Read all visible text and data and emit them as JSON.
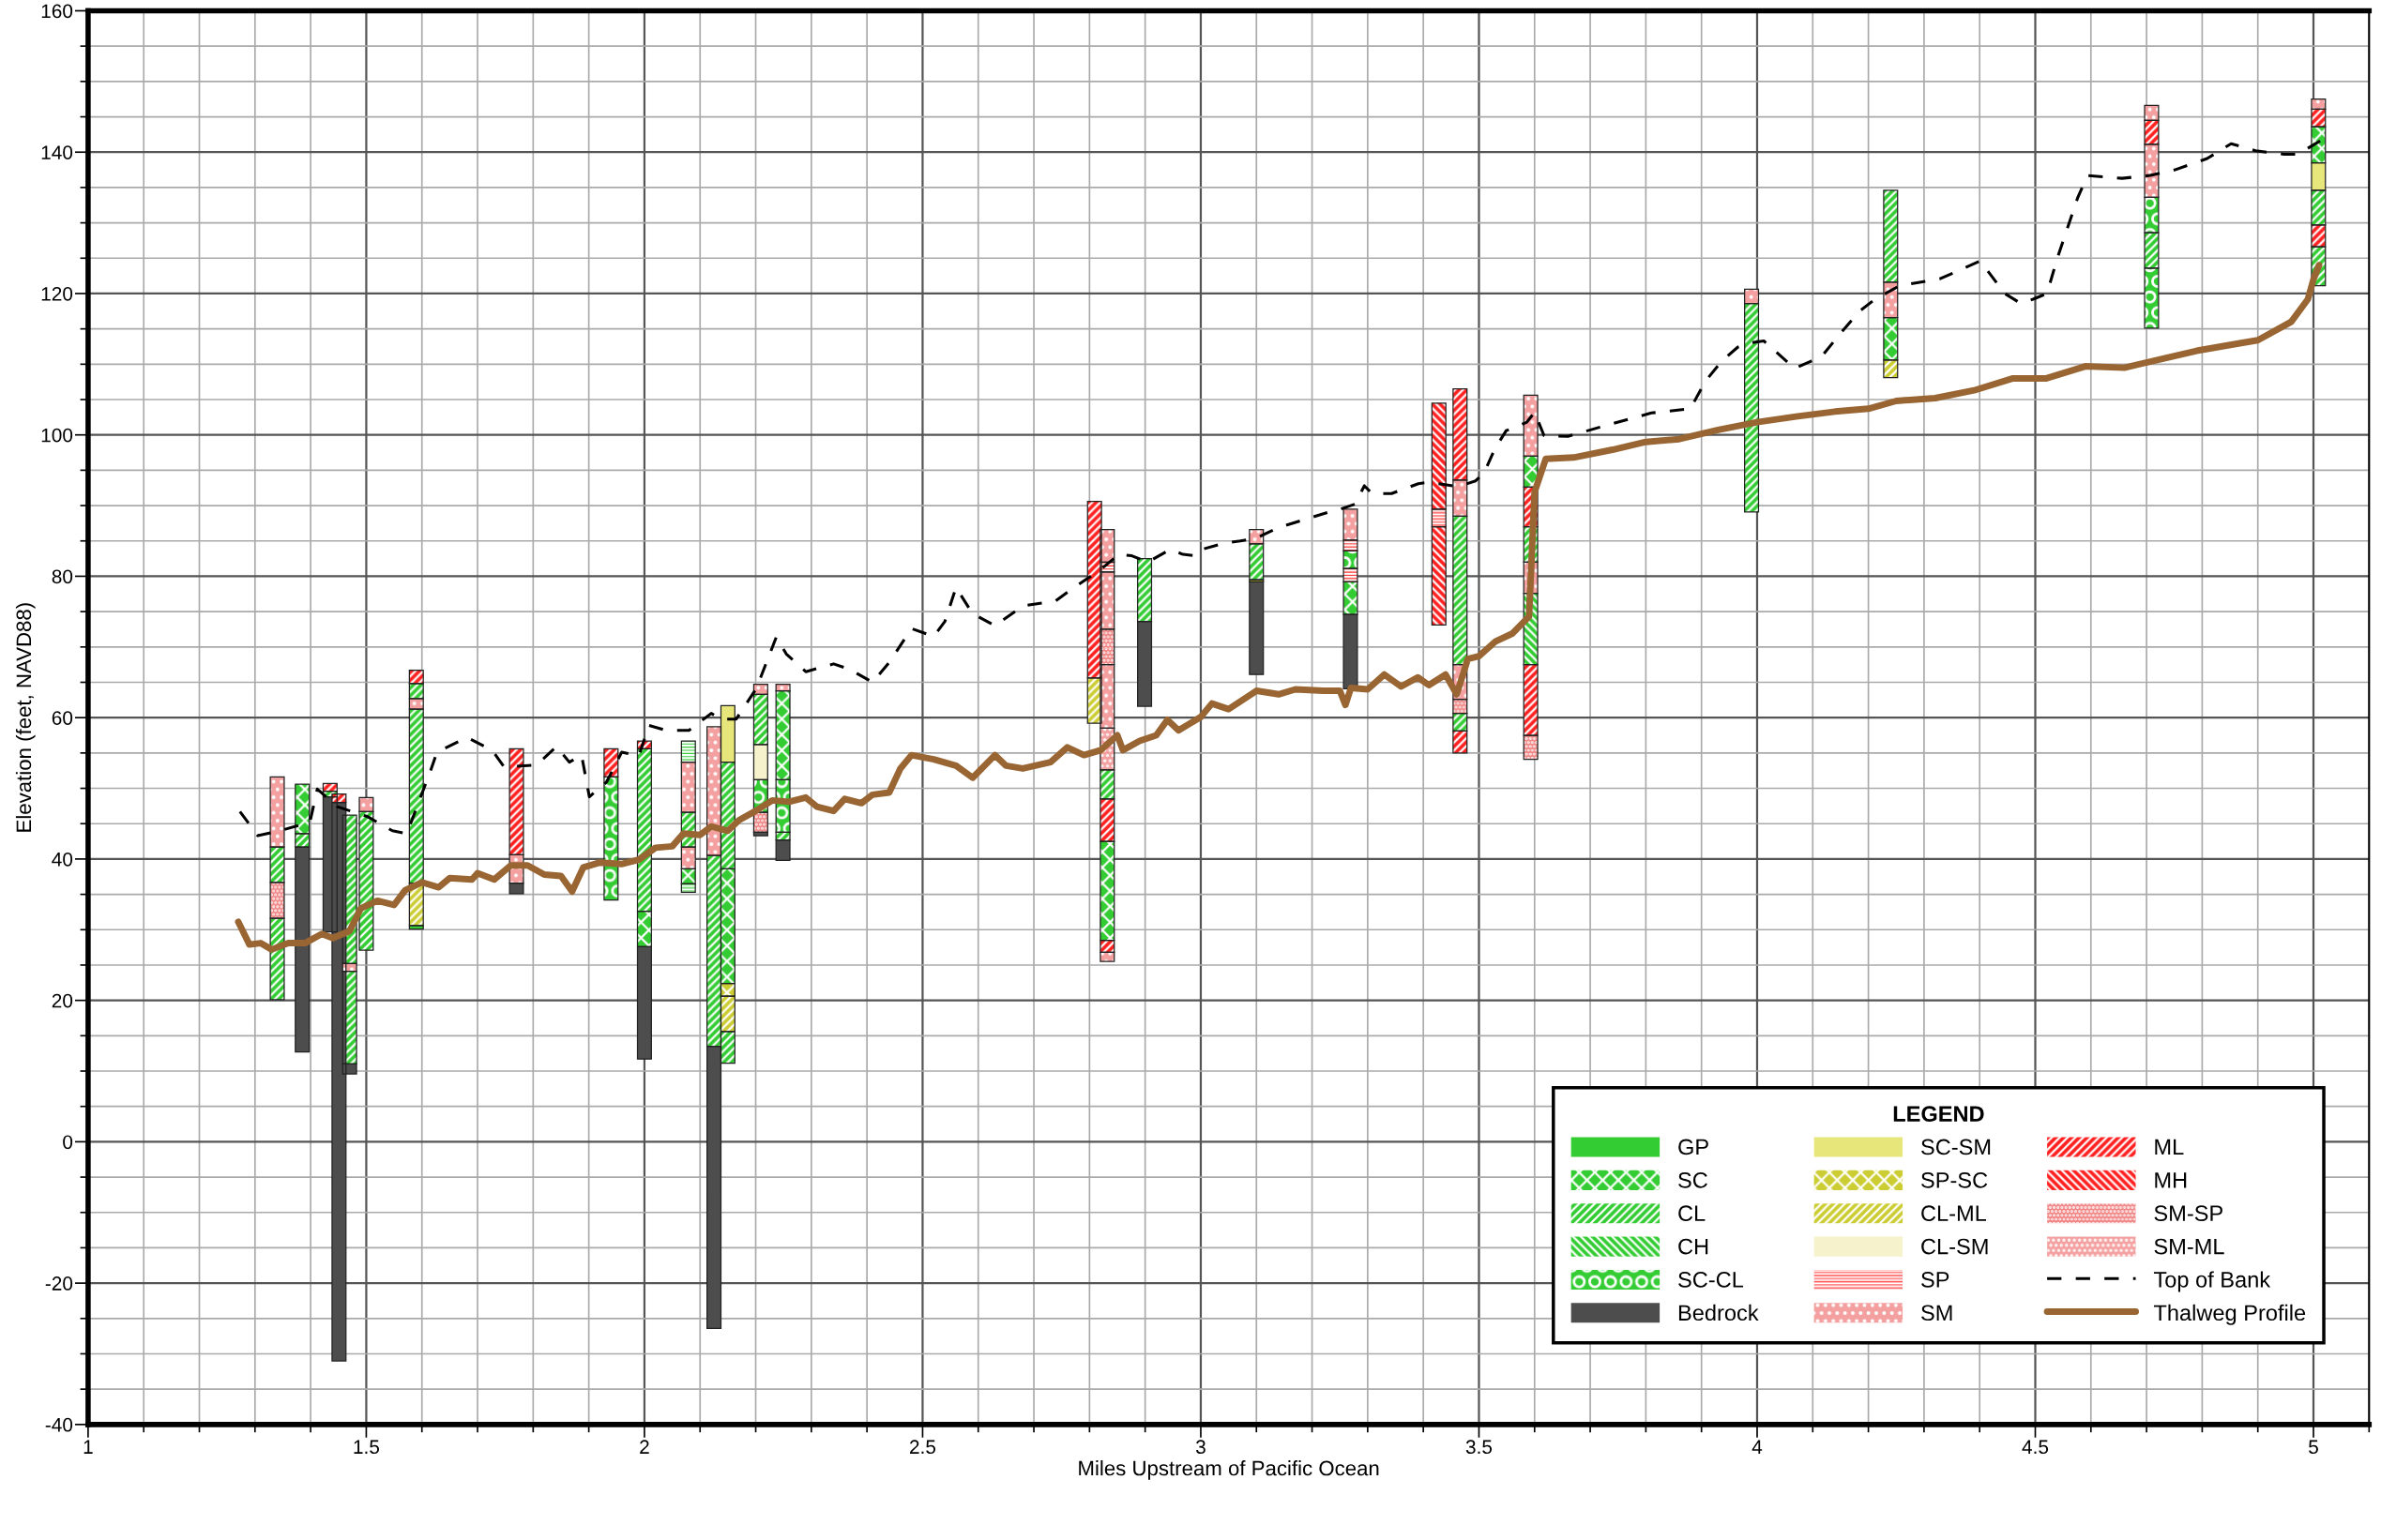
{
  "chart_data": {
    "type": "bar",
    "xlabel": "Miles Upstream of Pacific Ocean",
    "ylabel": "Elevation (feet, NAVD88)",
    "legend_title": "LEGEND",
    "legend": "bottom right",
    "grid": true,
    "xlim": [
      1,
      5.1
    ],
    "ylim": [
      -40,
      160
    ],
    "xticks": [
      1,
      {
        "value": 1.1,
        "label": null
      },
      {
        "value": 1.2,
        "label": null
      },
      {
        "value": 1.3,
        "label": null
      },
      {
        "value": 1.4,
        "label": null
      },
      1.5,
      {
        "value": 1.6,
        "label": null
      },
      {
        "value": 1.7,
        "label": null
      },
      {
        "value": 1.8,
        "label": null
      },
      {
        "value": 1.9,
        "label": null
      },
      2,
      {
        "value": 2.1,
        "label": null
      },
      {
        "value": 2.2,
        "label": null
      },
      {
        "value": 2.3,
        "label": null
      },
      {
        "value": 2.4,
        "label": null
      },
      2.5,
      {
        "value": 2.6,
        "label": null
      },
      {
        "value": 2.7,
        "label": null
      },
      {
        "value": 2.8,
        "label": null
      },
      {
        "value": 2.9,
        "label": null
      },
      3,
      {
        "value": 3.1,
        "label": null
      },
      {
        "value": 3.2,
        "label": null
      },
      {
        "value": 3.3,
        "label": null
      },
      {
        "value": 3.4,
        "label": null
      },
      3.5,
      {
        "value": 3.6,
        "label": null
      },
      {
        "value": 3.7,
        "label": null
      },
      {
        "value": 3.8,
        "label": null
      },
      {
        "value": 3.9,
        "label": null
      },
      4,
      {
        "value": 4.1,
        "label": null
      },
      {
        "value": 4.2,
        "label": null
      },
      {
        "value": 4.3,
        "label": null
      },
      {
        "value": 4.4,
        "label": null
      },
      4.5,
      {
        "value": 4.6,
        "label": null
      },
      {
        "value": 4.7,
        "label": null
      },
      {
        "value": 4.8,
        "label": null
      },
      {
        "value": 4.9,
        "label": null
      },
      5,
      {
        "value": 5.1,
        "label": null
      }
    ],
    "yticks": [
      -40,
      {
        "value": -35,
        "label": null
      },
      {
        "value": -30,
        "label": null
      },
      {
        "value": -25,
        "label": null
      },
      -20,
      {
        "value": -15,
        "label": null
      },
      {
        "value": -10,
        "label": null
      },
      {
        "value": -5,
        "label": null
      },
      0,
      {
        "value": 5,
        "label": null
      },
      {
        "value": 10,
        "label": null
      },
      {
        "value": 15,
        "label": null
      },
      20,
      {
        "value": 25,
        "label": null
      },
      {
        "value": 30,
        "label": null
      },
      {
        "value": 35,
        "label": null
      },
      40,
      {
        "value": 45,
        "label": null
      },
      {
        "value": 50,
        "label": null
      },
      {
        "value": 55,
        "label": null
      },
      60,
      {
        "value": 65,
        "label": null
      },
      {
        "value": 70,
        "label": null
      },
      {
        "value": 75,
        "label": null
      },
      80,
      {
        "value": 85,
        "label": null
      },
      {
        "value": 90,
        "label": null
      },
      {
        "value": 95,
        "label": null
      },
      100,
      {
        "value": 105,
        "label": null
      },
      {
        "value": 110,
        "label": null
      },
      {
        "value": 115,
        "label": null
      },
      120,
      {
        "value": 125,
        "label": null
      },
      {
        "value": 130,
        "label": null
      },
      {
        "value": 135,
        "label": null
      },
      140,
      {
        "value": 145,
        "label": null
      },
      {
        "value": 150,
        "label": null
      },
      {
        "value": 155,
        "label": null
      },
      160
    ],
    "series": [
      {
        "name": "GP",
        "color": "#33cc33",
        "x": [
          1.59,
          2.079
        ],
        "base": [
          30.1,
          53.7
        ],
        "values": [
          0.5,
          3.0
        ]
      },
      {
        "color": "#33cc33",
        "x": [
          2.079
        ],
        "base": [
          35.3
        ],
        "values": [
          1.2
        ]
      },
      {
        "name": "SC",
        "color": "#33cc33",
        "x": [
          1.385,
          2.0,
          2.079,
          2.15,
          2.249,
          2.832,
          3.269,
          3.593,
          4.24,
          5.009
        ],
        "base": [
          43.6,
          27.6,
          36.5,
          22.4,
          51.2,
          28.5,
          74.6,
          92.6,
          110.6,
          138.5
        ],
        "values": [
          7.0,
          5.0,
          2.1,
          16.2,
          12.6,
          14.0,
          4.6,
          4.4,
          6.0,
          5.1
        ]
      },
      {
        "name": "CL",
        "color": "#33cc33",
        "x": [
          1.34,
          1.385,
          1.435,
          1.47,
          1.5,
          1.59,
          2.0,
          2.079,
          2.125,
          2.15,
          2.209,
          2.249,
          2.832,
          2.899,
          3.1,
          3.466,
          3.593,
          3.99,
          4.24,
          4.709,
          5.009
        ],
        "base": [
          36.7,
          41.7,
          48.8,
          25.2,
          27.1,
          62.7,
          32.6,
          41.7,
          13.5,
          38.6,
          56.2,
          42.7,
          48.5,
          73.6,
          79.5,
          67.5,
          82.0,
          89.1,
          121.6,
          123.6,
          129.7
        ],
        "values": [
          5.0,
          1.9,
          0.8,
          21.0,
          19.6,
          2.1,
          23.0,
          4.9,
          27.0,
          15.1,
          7.1,
          1.1,
          4.1,
          8.9,
          5.1,
          21.0,
          5.0,
          29.5,
          13.0,
          5.0,
          4.9
        ]
      },
      {
        "color": "#33cc33",
        "x": [
          1.34,
          1.47,
          1.59,
          2.15,
          3.466,
          5.009
        ],
        "base": [
          20.1,
          11.0,
          36.6,
          11.1,
          58.1,
          121.1
        ],
        "values": [
          11.5,
          13.1,
          24.6,
          4.5,
          2.5,
          5.5
        ]
      },
      {
        "name": "CH",
        "color": "#33cc33",
        "x": [
          3.593
        ],
        "base": [
          67.5
        ],
        "values": [
          10.1
        ]
      },
      {
        "name": "SC-CL",
        "color": "#33cc33",
        "x": [
          1.94,
          2.209,
          2.249,
          3.269,
          4.709
        ],
        "base": [
          34.2,
          46.6,
          43.8,
          81.1,
          128.6
        ],
        "values": [
          17.4,
          4.6,
          7.4,
          2.5,
          5.0
        ]
      },
      {
        "color": "#33cc33",
        "x": [
          4.709
        ],
        "base": [
          115.1
        ],
        "values": [
          8.5
        ]
      },
      {
        "name": "Bedrock",
        "color": "#4d4d4d",
        "x": [
          1.385,
          1.435,
          1.451,
          1.47,
          1.77,
          2.0,
          2.125,
          2.209,
          2.249,
          2.899,
          3.1,
          3.269
        ],
        "base": [
          12.7,
          29.7,
          -31,
          9.6,
          35.1,
          11.7,
          -26.4,
          43.3,
          39.8,
          61.6,
          66.1,
          64.1
        ],
        "values": [
          29.0,
          19.1,
          79.0,
          1.4,
          1.5,
          15.9,
          39.9,
          0.5,
          2.9,
          12.0,
          13.1,
          10.5
        ]
      },
      {
        "name": "SC-SM",
        "color": "#e6e67a",
        "x": [
          2.15,
          5.009
        ],
        "base": [
          53.7,
          134.6
        ],
        "values": [
          8.0,
          3.9
        ]
      },
      {
        "name": "SP-SC",
        "color": "#cccc33",
        "x": [
          2.15
        ],
        "base": [
          20.6
        ],
        "values": [
          1.8
        ]
      },
      {
        "name": "CL-ML",
        "color": "#cccc33",
        "x": [
          1.59,
          2.15,
          2.809,
          3.1,
          4.24
        ],
        "base": [
          30.6,
          15.6,
          59.2,
          79.2,
          108.1
        ],
        "values": [
          6.0,
          5.0,
          6.4,
          0.3,
          2.5
        ]
      },
      {
        "name": "CL-SM",
        "color": "#f5f2cc",
        "x": [
          2.209
        ],
        "base": [
          51.2
        ],
        "values": [
          5.0
        ]
      },
      {
        "name": "SP",
        "color": "#ff2020",
        "x": [
          2.832,
          3.269,
          3.428
        ],
        "base": [
          80.6,
          83.6,
          87.0
        ],
        "values": [
          1.4,
          1.5,
          2.5
        ]
      },
      {
        "color": "#ff2020",
        "x": [
          3.269
        ],
        "base": [
          79.2
        ],
        "values": [
          1.9
        ]
      },
      {
        "name": "SM",
        "color": "#f4a0a0",
        "x": [
          1.34,
          1.47,
          1.5,
          1.59,
          1.77,
          2.079,
          2.125,
          2.209,
          2.249,
          2.832,
          3.1,
          3.269,
          3.466,
          3.593,
          3.99,
          4.24,
          4.709,
          5.009
        ],
        "base": [
          41.7,
          24.1,
          46.7,
          61.2,
          36.6,
          46.6,
          40.5,
          63.3,
          63.8,
          82.0,
          84.6,
          85.1,
          88.5,
          97.0,
          118.6,
          116.6,
          144.5,
          146.1
        ],
        "values": [
          9.9,
          1.1,
          2.0,
          1.5,
          4.0,
          7.1,
          18.2,
          1.4,
          0.9,
          4.6,
          2.0,
          4.4,
          5.1,
          8.6,
          2.0,
          5.0,
          2.1,
          1.4
        ]
      },
      {
        "color": "#f4a0a0",
        "x": [
          2.079,
          2.832,
          3.466,
          3.593,
          4.709
        ],
        "base": [
          38.6,
          72.5,
          62.6,
          77.6,
          133.6
        ],
        "values": [
          3.1,
          8.1,
          4.9,
          4.4,
          7.5
        ]
      },
      {
        "color": "#f4a0a0",
        "x": [
          2.832
        ],
        "base": [
          58.5
        ],
        "values": [
          9.0
        ]
      },
      {
        "color": "#f4a0a0",
        "x": [
          2.832
        ],
        "base": [
          25.5
        ],
        "values": [
          1.3
        ]
      },
      {
        "name": "ML",
        "color": "#ff2020",
        "x": [
          1.435,
          1.451,
          1.59,
          1.77,
          1.94,
          2.0,
          2.809,
          2.832,
          3.466,
          3.593,
          4.709,
          5.009
        ],
        "base": [
          49.6,
          48.0,
          64.8,
          40.6,
          51.6,
          55.6,
          65.6,
          42.5,
          93.6,
          87.0,
          141.1,
          143.6
        ],
        "values": [
          1.1,
          1.2,
          1.9,
          15.0,
          4.0,
          1.1,
          25.0,
          6.0,
          12.9,
          5.6,
          3.4,
          2.5
        ]
      },
      {
        "color": "#ff2020",
        "x": [
          2.832,
          3.466,
          3.593,
          5.009
        ],
        "base": [
          26.8,
          55.0,
          57.5,
          126.6
        ],
        "values": [
          1.7,
          3.1,
          10.0,
          3.1
        ]
      },
      {
        "name": "MH",
        "color": "#ff2020",
        "x": [
          3.428
        ],
        "base": [
          89.5
        ],
        "values": [
          15.0
        ]
      },
      {
        "color": "#ff2020",
        "x": [
          3.428
        ],
        "base": [
          73.1
        ],
        "values": [
          13.9
        ]
      },
      {
        "name": "SM-SP",
        "color": "#f08080",
        "x": [
          1.34,
          2.209,
          2.832,
          3.466,
          3.593
        ],
        "base": [
          31.6,
          43.8,
          67.5,
          60.6,
          54.1
        ],
        "values": [
          5.1,
          2.8,
          5.0,
          2.0,
          3.4
        ]
      },
      {
        "name": "SM-ML",
        "color": "#f4a0a0",
        "x": [
          2.832
        ],
        "base": [
          52.6
        ],
        "values": [
          5.9
        ]
      },
      {
        "name": "Top of Bank",
        "type": "line",
        "color": "#000000",
        "line_style": "dashed",
        "x": [
          1.273,
          1.305,
          1.345,
          1.376,
          1.399,
          1.412,
          1.448,
          1.502,
          1.547,
          1.573,
          1.616,
          1.627,
          1.681,
          1.726,
          1.748,
          1.806,
          1.842,
          1.865,
          1.887,
          1.901,
          1.932,
          1.959,
          1.99,
          2.008,
          2.039,
          2.08,
          2.12,
          2.138,
          2.165,
          2.201,
          2.237,
          2.255,
          2.29,
          2.34,
          2.37,
          2.41,
          2.44,
          2.48,
          2.52,
          2.54,
          2.56,
          2.59,
          2.63,
          2.68,
          2.739,
          2.768,
          2.819,
          2.853,
          2.876,
          2.905,
          2.945,
          2.968,
          2.991,
          3.002,
          3.042,
          3.071,
          3.1,
          3.14,
          3.185,
          3.231,
          3.251,
          3.277,
          3.294,
          3.308,
          3.343,
          3.391,
          3.408,
          3.463,
          3.494,
          3.509,
          3.529,
          3.549,
          3.569,
          3.586,
          3.6,
          3.617,
          3.66,
          3.74,
          3.81,
          3.88,
          3.907,
          3.936,
          3.965,
          3.987,
          4.012,
          4.067,
          4.096,
          4.118,
          4.147,
          4.184,
          4.212,
          4.256,
          4.329,
          4.358,
          4.401,
          4.445,
          4.474,
          4.496,
          4.521,
          4.54,
          4.576,
          4.594,
          4.656,
          4.707,
          4.751,
          4.809,
          4.852,
          4.896,
          4.947,
          4.972,
          5.012
        ],
        "values": [
          46.7,
          43.3,
          44.0,
          44.7,
          45.3,
          49.9,
          47.4,
          46.0,
          44.0,
          43.6,
          52.6,
          55.1,
          57.2,
          55.4,
          53.0,
          53.3,
          55.9,
          53.7,
          54.7,
          48.8,
          50.9,
          55.1,
          54.6,
          58.9,
          58.2,
          58.2,
          60.6,
          59.8,
          59.8,
          64.1,
          71.4,
          69.0,
          66.5,
          67.6,
          66.8,
          65.0,
          67.8,
          72.6,
          71.5,
          73.6,
          78.4,
          74.7,
          73.0,
          75.8,
          76.5,
          78.2,
          80.9,
          83.1,
          82.9,
          82.0,
          83.8,
          83.1,
          82.9,
          83.8,
          84.7,
          85.0,
          85.4,
          86.9,
          88.0,
          89.1,
          89.5,
          90.2,
          92.8,
          91.7,
          91.7,
          93.1,
          93.3,
          92.7,
          93.5,
          94.6,
          98.1,
          100.6,
          101.2,
          101.8,
          103.2,
          99.9,
          99.8,
          101.6,
          103.1,
          103.7,
          107.6,
          110.4,
          112.4,
          113.0,
          113.3,
          109.4,
          110.4,
          111.3,
          114.1,
          117.5,
          119.2,
          121.1,
          122.1,
          123.1,
          124.6,
          120.0,
          118.6,
          119.2,
          120.0,
          125.1,
          133.5,
          136.7,
          136.3,
          136.7,
          137.5,
          139.1,
          141.2,
          140.2,
          139.7,
          139.7,
          141.6
        ]
      },
      {
        "name": "Thalweg Profile",
        "type": "line",
        "color": "#996633",
        "line_style": "solid",
        "x": [
          1.27,
          1.29,
          1.31,
          1.33,
          1.36,
          1.39,
          1.42,
          1.44,
          1.47,
          1.49,
          1.52,
          1.55,
          1.57,
          1.6,
          1.63,
          1.65,
          1.69,
          1.7,
          1.73,
          1.76,
          1.79,
          1.82,
          1.85,
          1.87,
          1.89,
          1.92,
          1.96,
          1.99,
          2.02,
          2.05,
          2.07,
          2.1,
          2.12,
          2.15,
          2.17,
          2.2,
          2.23,
          2.26,
          2.29,
          2.31,
          2.34,
          2.36,
          2.39,
          2.41,
          2.44,
          2.46,
          2.48,
          2.52,
          2.56,
          2.59,
          2.63,
          2.65,
          2.68,
          2.73,
          2.76,
          2.79,
          2.82,
          2.85,
          2.86,
          2.89,
          2.92,
          2.94,
          2.96,
          3.0,
          3.02,
          3.05,
          3.1,
          3.14,
          3.17,
          3.22,
          3.25,
          3.26,
          3.27,
          3.3,
          3.33,
          3.36,
          3.39,
          3.41,
          3.44,
          3.46,
          3.48,
          3.5,
          3.53,
          3.56,
          3.59,
          3.6,
          3.62,
          3.67,
          3.74,
          3.8,
          3.86,
          3.93,
          4.0,
          4.07,
          4.14,
          4.2,
          4.25,
          4.32,
          4.39,
          4.46,
          4.52,
          4.59,
          4.66,
          4.73,
          4.79,
          4.87,
          4.9,
          4.96,
          4.99,
          5.0,
          5.01
        ],
        "values": [
          31.1,
          27.9,
          28.1,
          27.2,
          28.1,
          28.1,
          29.4,
          28.8,
          29.8,
          33.0,
          34.1,
          33.5,
          35.6,
          36.7,
          36.0,
          37.3,
          37.1,
          38.0,
          37.1,
          39.1,
          39.1,
          37.8,
          37.6,
          35.4,
          38.8,
          39.5,
          39.3,
          39.9,
          41.6,
          41.8,
          43.6,
          43.4,
          44.6,
          44.0,
          45.5,
          46.8,
          48.3,
          48.1,
          48.7,
          47.4,
          46.8,
          48.5,
          47.9,
          49.1,
          49.4,
          52.8,
          54.7,
          54.1,
          53.2,
          51.5,
          54.7,
          53.2,
          52.8,
          53.7,
          55.8,
          54.7,
          55.4,
          57.5,
          55.4,
          56.7,
          57.5,
          59.7,
          58.2,
          60.1,
          62.0,
          61.2,
          63.8,
          63.3,
          64.0,
          63.8,
          63.8,
          61.8,
          64.2,
          64.0,
          66.1,
          64.4,
          65.7,
          64.6,
          66.1,
          63.3,
          68.3,
          68.7,
          70.8,
          71.9,
          74.3,
          91.9,
          96.6,
          96.8,
          97.9,
          99.0,
          99.4,
          100.7,
          101.8,
          102.6,
          103.3,
          103.7,
          104.8,
          105.2,
          106.3,
          108.0,
          108.0,
          109.7,
          109.5,
          110.8,
          111.9,
          113.0,
          113.4,
          116.0,
          119.2,
          122.0,
          124.0
        ]
      }
    ]
  }
}
